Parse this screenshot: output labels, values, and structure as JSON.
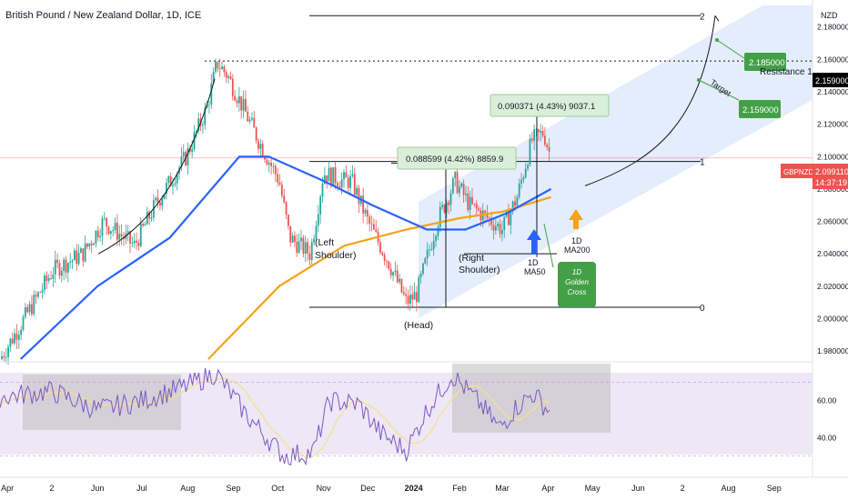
{
  "header": {
    "title": "British Pound / New Zealand Dollar, 1D, ICE"
  },
  "axis": {
    "currency": "NZD",
    "price_ticks": [
      "2.180000",
      "2.160000",
      "2.140000",
      "2.120000",
      "2.100000",
      "2.080000",
      "2.060000",
      "2.040000",
      "2.020000",
      "2.000000",
      "1.980000"
    ],
    "rsi_ticks": [
      "60.00",
      "40.00"
    ],
    "months": [
      "Apr",
      "2",
      "Jun",
      "Jul",
      "Aug",
      "Sep",
      "Oct",
      "Nov",
      "Dec",
      "2024",
      "Feb",
      "Mar",
      "Apr",
      "May",
      "Jun",
      "2",
      "Aug",
      "Sep"
    ]
  },
  "badges": {
    "resistance_price": "2.159000",
    "symbol": "GBPNZD",
    "last_price": "2.099110",
    "countdown": "14:37:19"
  },
  "fib": {
    "level2": "2",
    "level1": "1",
    "level0": "0"
  },
  "annotations": {
    "resistance": "Resistance 1",
    "target": "Target",
    "target_high": "2.185000",
    "target_low": "2.159000",
    "measure1": "0.088599 (4.42%) 8859.9",
    "measure2": "0.090371 (4.43%) 9037.1",
    "left_shoulder": [
      "(Left",
      "Shoulder)"
    ],
    "head": "(Head)",
    "right_shoulder": [
      "(Right",
      "Shoulder)"
    ],
    "ma50": [
      "1D",
      "MA50"
    ],
    "ma200": [
      "1D",
      "MA200"
    ],
    "golden_cross": [
      "1D",
      "Golden",
      "Cross"
    ]
  },
  "colors": {
    "up": "#26a69a",
    "down": "#ef5350",
    "ma50": "#2962ff",
    "ma200": "#f7a21b",
    "channel": "#dbe7fb",
    "rsi": "#7e57c2",
    "rsi_ma": "#f5e08a",
    "label_green": "#43a047"
  },
  "chart_data": {
    "type": "candlestick",
    "symbol": "GBPNZD",
    "timeframe": "1D",
    "ylim": [
      1.975,
      2.195
    ],
    "last_price": 2.09911,
    "ma50_last": 2.08,
    "ma200_last": 2.075,
    "price_path": [
      [
        "2023-03-27",
        1.975
      ],
      [
        "2023-05-02",
        2.03
      ],
      [
        "2023-05-22",
        2.04
      ],
      [
        "2023-06-05",
        2.06
      ],
      [
        "2023-06-26",
        2.045
      ],
      [
        "2023-07-10",
        2.07
      ],
      [
        "2023-07-31",
        2.1
      ],
      [
        "2023-08-14",
        2.13
      ],
      [
        "2023-08-21",
        2.158
      ],
      [
        "2023-08-28",
        2.15
      ],
      [
        "2023-09-05",
        2.135
      ],
      [
        "2023-09-18",
        2.11
      ],
      [
        "2023-10-02",
        2.085
      ],
      [
        "2023-10-09",
        2.05
      ],
      [
        "2023-10-23",
        2.04
      ],
      [
        "2023-11-01",
        2.09
      ],
      [
        "2023-11-14",
        2.085
      ],
      [
        "2023-11-20",
        2.085
      ],
      [
        "2023-12-01",
        2.06
      ],
      [
        "2023-12-15",
        2.035
      ],
      [
        "2023-12-27",
        2.01
      ],
      [
        "2024-01-03",
        2.015
      ],
      [
        "2024-01-17",
        2.06
      ],
      [
        "2024-01-29",
        2.085
      ],
      [
        "2024-02-08",
        2.07
      ],
      [
        "2024-02-23",
        2.06
      ],
      [
        "2024-03-01",
        2.055
      ],
      [
        "2024-03-11",
        2.075
      ],
      [
        "2024-03-21",
        2.11
      ],
      [
        "2024-03-29",
        2.115
      ],
      [
        "2024-04-03",
        2.099
      ]
    ],
    "ma50_path": [
      [
        "2023-04-10",
        1.975
      ],
      [
        "2023-06-01",
        2.02
      ],
      [
        "2023-07-20",
        2.05
      ],
      [
        "2023-09-05",
        2.1
      ],
      [
        "2023-09-25",
        2.1
      ],
      [
        "2023-11-01",
        2.085
      ],
      [
        "2023-12-04",
        2.07
      ],
      [
        "2024-01-10",
        2.055
      ],
      [
        "2024-02-05",
        2.055
      ],
      [
        "2024-03-04",
        2.065
      ],
      [
        "2024-04-03",
        2.08
      ]
    ],
    "ma200_path": [
      [
        "2023-08-15",
        1.975
      ],
      [
        "2023-10-02",
        2.02
      ],
      [
        "2023-11-15",
        2.045
      ],
      [
        "2023-12-27",
        2.055
      ],
      [
        "2024-02-01",
        2.062
      ],
      [
        "2024-03-01",
        2.066
      ],
      [
        "2024-04-03",
        2.075
      ]
    ],
    "levels": {
      "fib_0": 2.007,
      "fib_1": 2.097,
      "fib_2": 2.187,
      "resistance_1": 2.159,
      "target_high": 2.185,
      "target_low": 2.159,
      "neckline": 2.097,
      "right_shoulder_low": 2.04
    },
    "measurements": [
      {
        "from": 2.007,
        "to": 2.096,
        "change": 0.088599,
        "pct": 4.42,
        "points": 8859.9
      },
      {
        "from": 2.038,
        "to": 2.128,
        "change": 0.090371,
        "pct": 4.43,
        "points": 9037.1
      }
    ],
    "rsi": {
      "ylim": [
        20,
        80
      ],
      "path": [
        [
          "2023-03-27",
          62
        ],
        [
          "2023-05-01",
          65
        ],
        [
          "2023-06-01",
          55
        ],
        [
          "2023-07-01",
          60
        ],
        [
          "2023-08-01",
          68
        ],
        [
          "2023-08-20",
          75
        ],
        [
          "2023-09-10",
          52
        ],
        [
          "2023-10-05",
          30
        ],
        [
          "2023-10-25",
          32
        ],
        [
          "2023-11-05",
          60
        ],
        [
          "2023-11-25",
          58
        ],
        [
          "2023-12-10",
          42
        ],
        [
          "2023-12-27",
          33
        ],
        [
          "2024-01-10",
          55
        ],
        [
          "2024-01-27",
          74
        ],
        [
          "2024-02-15",
          58
        ],
        [
          "2024-02-28",
          45
        ],
        [
          "2024-03-10",
          56
        ],
        [
          "2024-03-22",
          64
        ],
        [
          "2024-04-03",
          53
        ]
      ],
      "bands": {
        "upper": 70,
        "lower": 30
      }
    }
  }
}
